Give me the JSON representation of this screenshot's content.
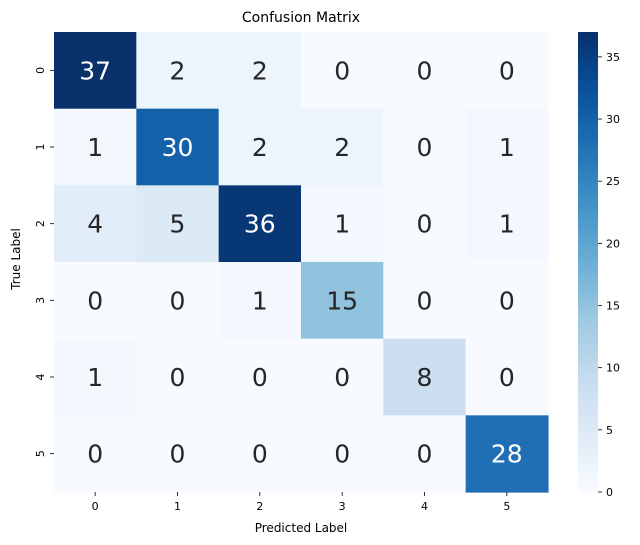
{
  "chart_data": {
    "type": "heatmap",
    "title": "Confusion Matrix",
    "xlabel": "Predicted Label",
    "ylabel": "True Label",
    "x_categories": [
      "0",
      "1",
      "2",
      "3",
      "4",
      "5"
    ],
    "y_categories": [
      "0",
      "1",
      "2",
      "3",
      "4",
      "5"
    ],
    "values": [
      [
        37,
        2,
        2,
        0,
        0,
        0
      ],
      [
        1,
        30,
        2,
        2,
        0,
        1
      ],
      [
        4,
        5,
        36,
        1,
        0,
        1
      ],
      [
        0,
        0,
        1,
        15,
        0,
        0
      ],
      [
        1,
        0,
        0,
        0,
        8,
        0
      ],
      [
        0,
        0,
        0,
        0,
        0,
        28
      ]
    ],
    "colormap": "Blues",
    "color_range": [
      0,
      37
    ],
    "colorbar": {
      "ticks": [
        0,
        5,
        10,
        15,
        20,
        25,
        30,
        35
      ]
    },
    "annotations": true
  }
}
